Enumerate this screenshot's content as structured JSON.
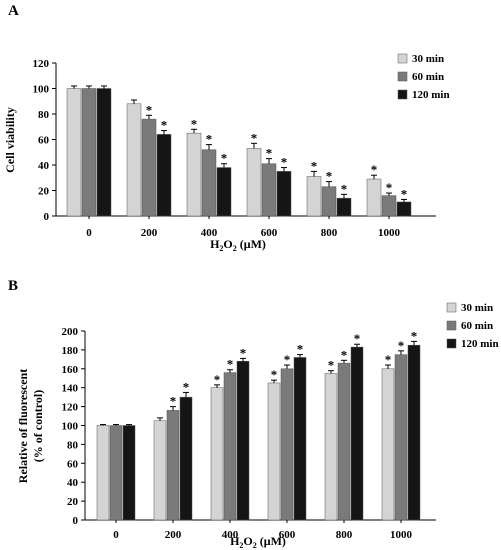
{
  "chart_data": [
    {
      "type": "bar",
      "panel_label": "A",
      "title": "",
      "xlabel": "H₂O₂ (μM)",
      "ylabel": "Cell viability",
      "ylim": [
        0,
        120
      ],
      "yticks": [
        0,
        20,
        40,
        60,
        80,
        100,
        120
      ],
      "categories": [
        "0",
        "200",
        "400",
        "600",
        "800",
        "1000"
      ],
      "series": [
        {
          "name": "30 min",
          "color": "#d4d4d4",
          "values": [
            100,
            88,
            65,
            53,
            31,
            29
          ],
          "errors": [
            2,
            3,
            3,
            4,
            4,
            3
          ],
          "significant": [
            false,
            false,
            true,
            true,
            true,
            true
          ]
        },
        {
          "name": "60 min",
          "color": "#7a7a7a",
          "values": [
            100,
            76,
            52,
            41,
            23,
            16
          ],
          "errors": [
            2,
            3,
            4,
            4,
            4,
            2
          ],
          "significant": [
            false,
            true,
            true,
            true,
            true,
            true
          ]
        },
        {
          "name": "120 min",
          "color": "#151515",
          "values": [
            100,
            64,
            38,
            35,
            14,
            11
          ],
          "errors": [
            2,
            3,
            3,
            3,
            3,
            2
          ],
          "significant": [
            false,
            true,
            true,
            true,
            true,
            true
          ]
        }
      ],
      "significance_marker": "*",
      "legend": "right",
      "grid": false
    },
    {
      "type": "bar",
      "panel_label": "B",
      "title": "",
      "xlabel": "H₂O₂ (μM)",
      "ylabel_lines": [
        "Relative of fluorescent",
        "(% of control)"
      ],
      "ylim": [
        0,
        200
      ],
      "yticks": [
        0,
        20,
        40,
        60,
        80,
        100,
        120,
        140,
        160,
        180,
        200
      ],
      "categories": [
        "0",
        "200",
        "400",
        "600",
        "800",
        "1000"
      ],
      "series": [
        {
          "name": "30 min",
          "color": "#d4d4d4",
          "values": [
            100,
            105,
            140,
            145,
            155,
            160
          ],
          "errors": [
            1,
            3,
            3,
            3,
            3,
            4
          ],
          "significant": [
            false,
            false,
            true,
            true,
            true,
            true
          ]
        },
        {
          "name": "60 min",
          "color": "#7a7a7a",
          "values": [
            100,
            116,
            156,
            160,
            166,
            175
          ],
          "errors": [
            1,
            4,
            3,
            4,
            3,
            4
          ],
          "significant": [
            false,
            true,
            true,
            true,
            true,
            true
          ]
        },
        {
          "name": "120 min",
          "color": "#151515",
          "values": [
            100,
            130,
            168,
            172,
            183,
            185
          ],
          "errors": [
            1,
            5,
            3,
            3,
            3,
            4
          ],
          "significant": [
            false,
            true,
            true,
            true,
            true,
            true
          ]
        }
      ],
      "significance_marker": "*",
      "legend": "top-right",
      "grid": false
    }
  ]
}
